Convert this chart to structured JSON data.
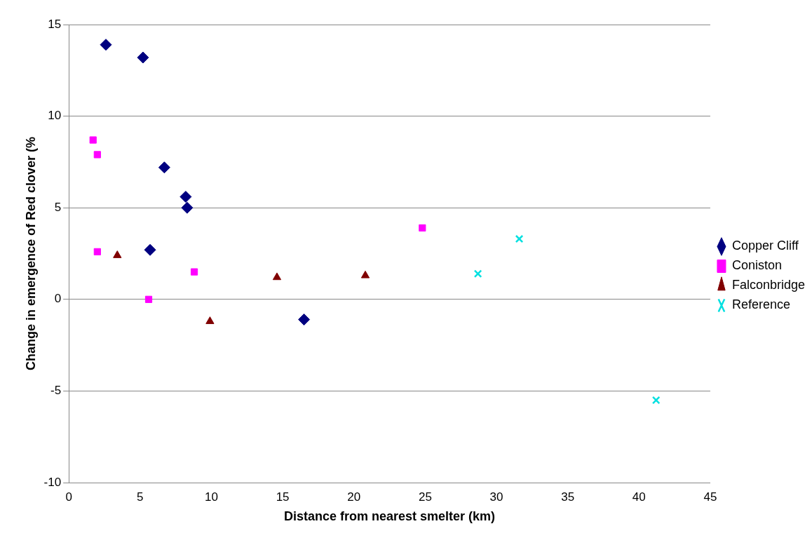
{
  "chart_data": {
    "type": "scatter",
    "xlabel": "Distance from nearest smelter (km)",
    "ylabel": "Change in emergence of Red clover (%",
    "xlim": [
      0,
      45
    ],
    "xticks": [
      0,
      5,
      10,
      15,
      20,
      25,
      30,
      35,
      40,
      45
    ],
    "ylim": [
      -10,
      15
    ],
    "yticks": [
      -10,
      -5,
      0,
      5,
      10,
      15
    ],
    "grid": "y",
    "legend": "right",
    "series": [
      {
        "name": "Copper Cliff",
        "color": "#000080",
        "marker": "diamond",
        "x": [
          2.6,
          5.2,
          6.7,
          8.2,
          8.3,
          5.7,
          16.5
        ],
        "values": [
          13.9,
          13.2,
          7.2,
          5.6,
          5.0,
          2.7,
          -1.1
        ]
      },
      {
        "name": "Coniston",
        "color": "#ff00ff",
        "marker": "square",
        "x": [
          1.7,
          2.0,
          2.0,
          5.6,
          8.8,
          24.8
        ],
        "values": [
          8.7,
          7.9,
          2.6,
          0.0,
          1.5,
          3.9
        ]
      },
      {
        "name": "Falconbridge",
        "color": "#800000",
        "marker": "triangle",
        "x": [
          3.4,
          9.9,
          14.6,
          20.8
        ],
        "values": [
          2.4,
          -1.2,
          1.2,
          1.3
        ]
      },
      {
        "name": "Reference",
        "color": "#00e0e0",
        "marker": "cross",
        "x": [
          28.7,
          31.6,
          41.2
        ],
        "values": [
          1.4,
          3.3,
          -5.5
        ]
      }
    ]
  }
}
